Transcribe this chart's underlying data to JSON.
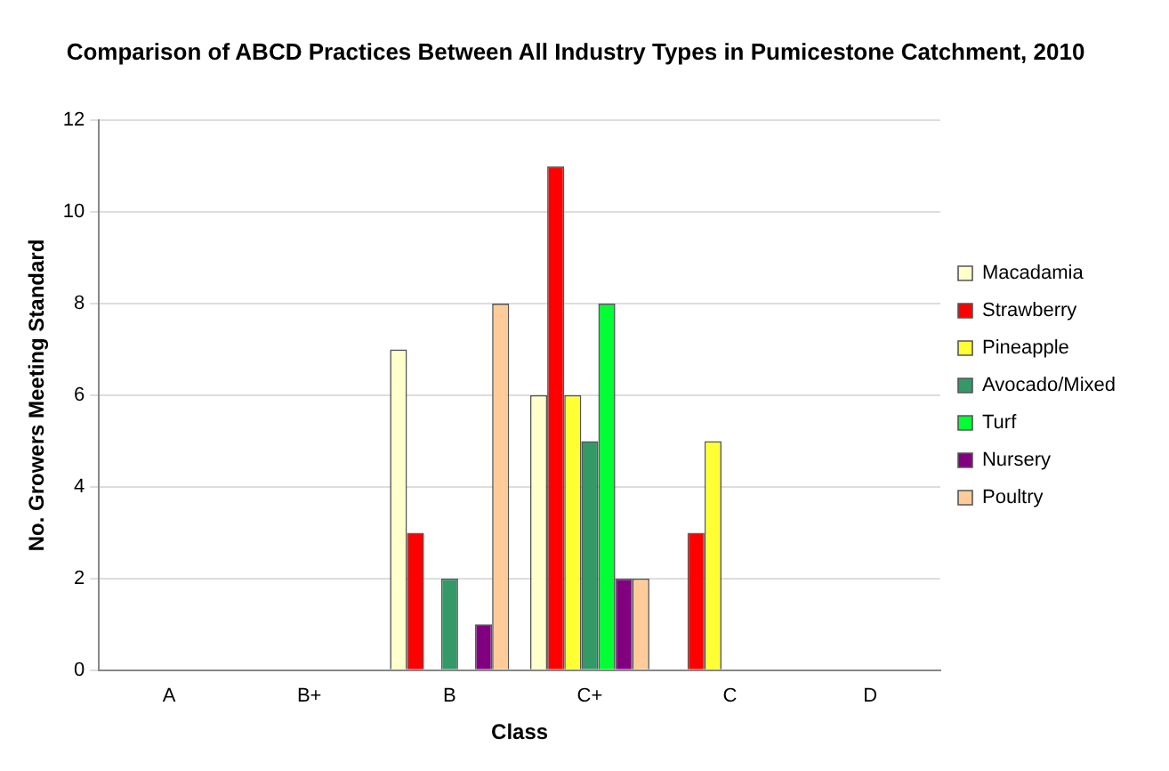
{
  "chart_data": {
    "type": "bar",
    "title": "Comparison of ABCD Practices Between All Industry Types in Pumicestone Catchment, 2010",
    "xlabel": "Class",
    "ylabel": "No. Growers Meeting Standard",
    "categories": [
      "A",
      "B+",
      "B",
      "C+",
      "C",
      "D"
    ],
    "series": [
      {
        "name": "Macadamia",
        "color": "#ffffcc",
        "values": [
          0,
          0,
          7,
          6,
          0,
          0
        ]
      },
      {
        "name": "Strawberry",
        "color": "#ff0000",
        "values": [
          0,
          0,
          3,
          11,
          3,
          0
        ]
      },
      {
        "name": "Pineapple",
        "color": "#ffff33",
        "values": [
          0,
          0,
          0,
          6,
          5,
          0
        ]
      },
      {
        "name": "Avocado/Mixed",
        "color": "#339966",
        "values": [
          0,
          0,
          2,
          5,
          0,
          0
        ]
      },
      {
        "name": "Turf",
        "color": "#00ff33",
        "values": [
          0,
          0,
          0,
          8,
          0,
          0
        ]
      },
      {
        "name": "Nursery",
        "color": "#800080",
        "values": [
          0,
          0,
          1,
          2,
          0,
          0
        ]
      },
      {
        "name": "Poultry",
        "color": "#ffcc99",
        "values": [
          0,
          0,
          8,
          2,
          0,
          0
        ]
      }
    ],
    "ylim": [
      0,
      12
    ],
    "yticks": [
      0,
      2,
      4,
      6,
      8,
      10,
      12
    ],
    "grid": "y",
    "legend": "right"
  }
}
